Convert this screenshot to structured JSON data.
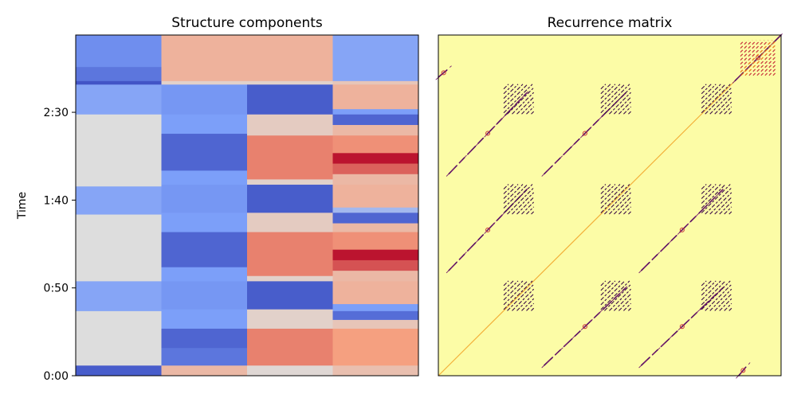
{
  "chart_data": [
    {
      "type": "heatmap",
      "title": "Structure components",
      "ylabel": "Time",
      "xlabel": "",
      "colormap": "coolwarm",
      "n_components": 4,
      "time_range_seconds": [
        0,
        194
      ],
      "yticks": [
        {
          "value": 0,
          "label": "0:00"
        },
        {
          "value": 50,
          "label": "0:50"
        },
        {
          "value": 100,
          "label": "1:40"
        },
        {
          "value": 150,
          "label": "2:30"
        }
      ],
      "x_ticks_shown": false,
      "columns": [
        {
          "name": "",
          "segments": [
            {
              "t0": 0,
              "t1": 6,
              "v": -0.9
            },
            {
              "t0": 6,
              "t1": 37,
              "v": 0.0
            },
            {
              "t0": 37,
              "t1": 54,
              "v": -0.45
            },
            {
              "t0": 54,
              "t1": 92,
              "v": 0.0
            },
            {
              "t0": 92,
              "t1": 108,
              "v": -0.45
            },
            {
              "t0": 108,
              "t1": 149,
              "v": 0.0
            },
            {
              "t0": 149,
              "t1": 166,
              "v": -0.45
            },
            {
              "t0": 166,
              "t1": 168,
              "v": -0.95
            },
            {
              "t0": 168,
              "t1": 176,
              "v": -0.75
            },
            {
              "t0": 176,
              "t1": 194,
              "v": -0.6
            }
          ]
        },
        {
          "name": "",
          "segments": [
            {
              "t0": 0,
              "t1": 6,
              "v": 0.3
            },
            {
              "t0": 6,
              "t1": 16,
              "v": -0.75
            },
            {
              "t0": 16,
              "t1": 27,
              "v": -0.85
            },
            {
              "t0": 27,
              "t1": 38,
              "v": -0.5
            },
            {
              "t0": 38,
              "t1": 54,
              "v": -0.55
            },
            {
              "t0": 54,
              "t1": 62,
              "v": -0.5
            },
            {
              "t0": 62,
              "t1": 82,
              "v": -0.85
            },
            {
              "t0": 82,
              "t1": 93,
              "v": -0.5
            },
            {
              "t0": 93,
              "t1": 109,
              "v": -0.55
            },
            {
              "t0": 109,
              "t1": 117,
              "v": -0.5
            },
            {
              "t0": 117,
              "t1": 138,
              "v": -0.85
            },
            {
              "t0": 138,
              "t1": 149,
              "v": -0.5
            },
            {
              "t0": 149,
              "t1": 166,
              "v": -0.55
            },
            {
              "t0": 166,
              "t1": 168,
              "v": 0.1
            },
            {
              "t0": 168,
              "t1": 194,
              "v": 0.35
            }
          ]
        },
        {
          "name": "",
          "segments": [
            {
              "t0": 0,
              "t1": 6,
              "v": 0.05
            },
            {
              "t0": 6,
              "t1": 27,
              "v": 0.6
            },
            {
              "t0": 27,
              "t1": 38,
              "v": 0.1
            },
            {
              "t0": 38,
              "t1": 54,
              "v": -0.9
            },
            {
              "t0": 54,
              "t1": 57,
              "v": 0.1
            },
            {
              "t0": 57,
              "t1": 82,
              "v": 0.6
            },
            {
              "t0": 82,
              "t1": 93,
              "v": 0.15
            },
            {
              "t0": 93,
              "t1": 109,
              "v": -0.9
            },
            {
              "t0": 109,
              "t1": 112,
              "v": 0.1
            },
            {
              "t0": 112,
              "t1": 137,
              "v": 0.6
            },
            {
              "t0": 137,
              "t1": 149,
              "v": 0.15
            },
            {
              "t0": 149,
              "t1": 166,
              "v": -0.9
            },
            {
              "t0": 166,
              "t1": 168,
              "v": 0.1
            },
            {
              "t0": 168,
              "t1": 194,
              "v": 0.35
            }
          ]
        },
        {
          "name": "",
          "segments": [
            {
              "t0": 0,
              "t1": 6,
              "v": 0.25
            },
            {
              "t0": 6,
              "t1": 27,
              "v": 0.5
            },
            {
              "t0": 27,
              "t1": 32,
              "v": 0.2
            },
            {
              "t0": 32,
              "t1": 37,
              "v": -0.8
            },
            {
              "t0": 37,
              "t1": 41,
              "v": -0.5
            },
            {
              "t0": 41,
              "t1": 54,
              "v": 0.35
            },
            {
              "t0": 54,
              "t1": 60,
              "v": 0.3
            },
            {
              "t0": 60,
              "t1": 66,
              "v": 0.75
            },
            {
              "t0": 66,
              "t1": 72,
              "v": 0.95
            },
            {
              "t0": 72,
              "t1": 82,
              "v": 0.55
            },
            {
              "t0": 82,
              "t1": 87,
              "v": 0.3
            },
            {
              "t0": 87,
              "t1": 93,
              "v": -0.85
            },
            {
              "t0": 93,
              "t1": 96,
              "v": -0.3
            },
            {
              "t0": 96,
              "t1": 109,
              "v": 0.35
            },
            {
              "t0": 109,
              "t1": 115,
              "v": 0.3
            },
            {
              "t0": 115,
              "t1": 121,
              "v": 0.7
            },
            {
              "t0": 121,
              "t1": 127,
              "v": 0.95
            },
            {
              "t0": 127,
              "t1": 137,
              "v": 0.55
            },
            {
              "t0": 137,
              "t1": 143,
              "v": 0.3
            },
            {
              "t0": 143,
              "t1": 149,
              "v": -0.85
            },
            {
              "t0": 149,
              "t1": 152,
              "v": -0.5
            },
            {
              "t0": 152,
              "t1": 166,
              "v": 0.35
            },
            {
              "t0": 166,
              "t1": 168,
              "v": 0.2
            },
            {
              "t0": 168,
              "t1": 194,
              "v": -0.45
            }
          ]
        }
      ]
    },
    {
      "type": "heatmap",
      "title": "Recurrence matrix",
      "xlabel": "",
      "ylabel": "",
      "colormap": "inferno-like (yellow background, dark purple recurrences)",
      "background_color": "#fcfca6",
      "x_ticks_shown": false,
      "y_ticks_shown": false,
      "time_range_seconds": [
        0,
        194
      ],
      "diagonal_stripes": [
        {
          "x0": 6,
          "x1": 50,
          "y0": 60,
          "y1": 106
        },
        {
          "x0": 60,
          "x1": 106,
          "y0": 6,
          "y1": 50
        },
        {
          "x0": 6,
          "x1": 50,
          "y0": 115,
          "y1": 161
        },
        {
          "x0": 115,
          "x1": 161,
          "y0": 6,
          "y1": 50
        },
        {
          "x0": 60,
          "x1": 106,
          "y0": 115,
          "y1": 161
        },
        {
          "x0": 115,
          "x1": 161,
          "y0": 60,
          "y1": 106
        },
        {
          "x0": 0,
          "x1": 6,
          "y0": 170,
          "y1": 175
        },
        {
          "x0": 170,
          "x1": 175,
          "y0": 0,
          "y1": 6
        },
        {
          "x0": 168,
          "x1": 194,
          "y0": 168,
          "y1": 194
        }
      ],
      "block_patches": [
        {
          "x0": 37,
          "x1": 54,
          "y0": 37,
          "y1": 54
        },
        {
          "x0": 37,
          "x1": 54,
          "y0": 92,
          "y1": 109
        },
        {
          "x0": 37,
          "x1": 54,
          "y0": 149,
          "y1": 166
        },
        {
          "x0": 92,
          "x1": 109,
          "y0": 37,
          "y1": 54
        },
        {
          "x0": 92,
          "x1": 109,
          "y0": 92,
          "y1": 109
        },
        {
          "x0": 92,
          "x1": 109,
          "y0": 149,
          "y1": 166
        },
        {
          "x0": 149,
          "x1": 166,
          "y0": 37,
          "y1": 54
        },
        {
          "x0": 149,
          "x1": 166,
          "y0": 92,
          "y1": 109
        },
        {
          "x0": 149,
          "x1": 166,
          "y0": 149,
          "y1": 166
        }
      ],
      "end_block": {
        "x0": 171,
        "x1": 191,
        "y0": 171,
        "y1": 191
      }
    }
  ]
}
